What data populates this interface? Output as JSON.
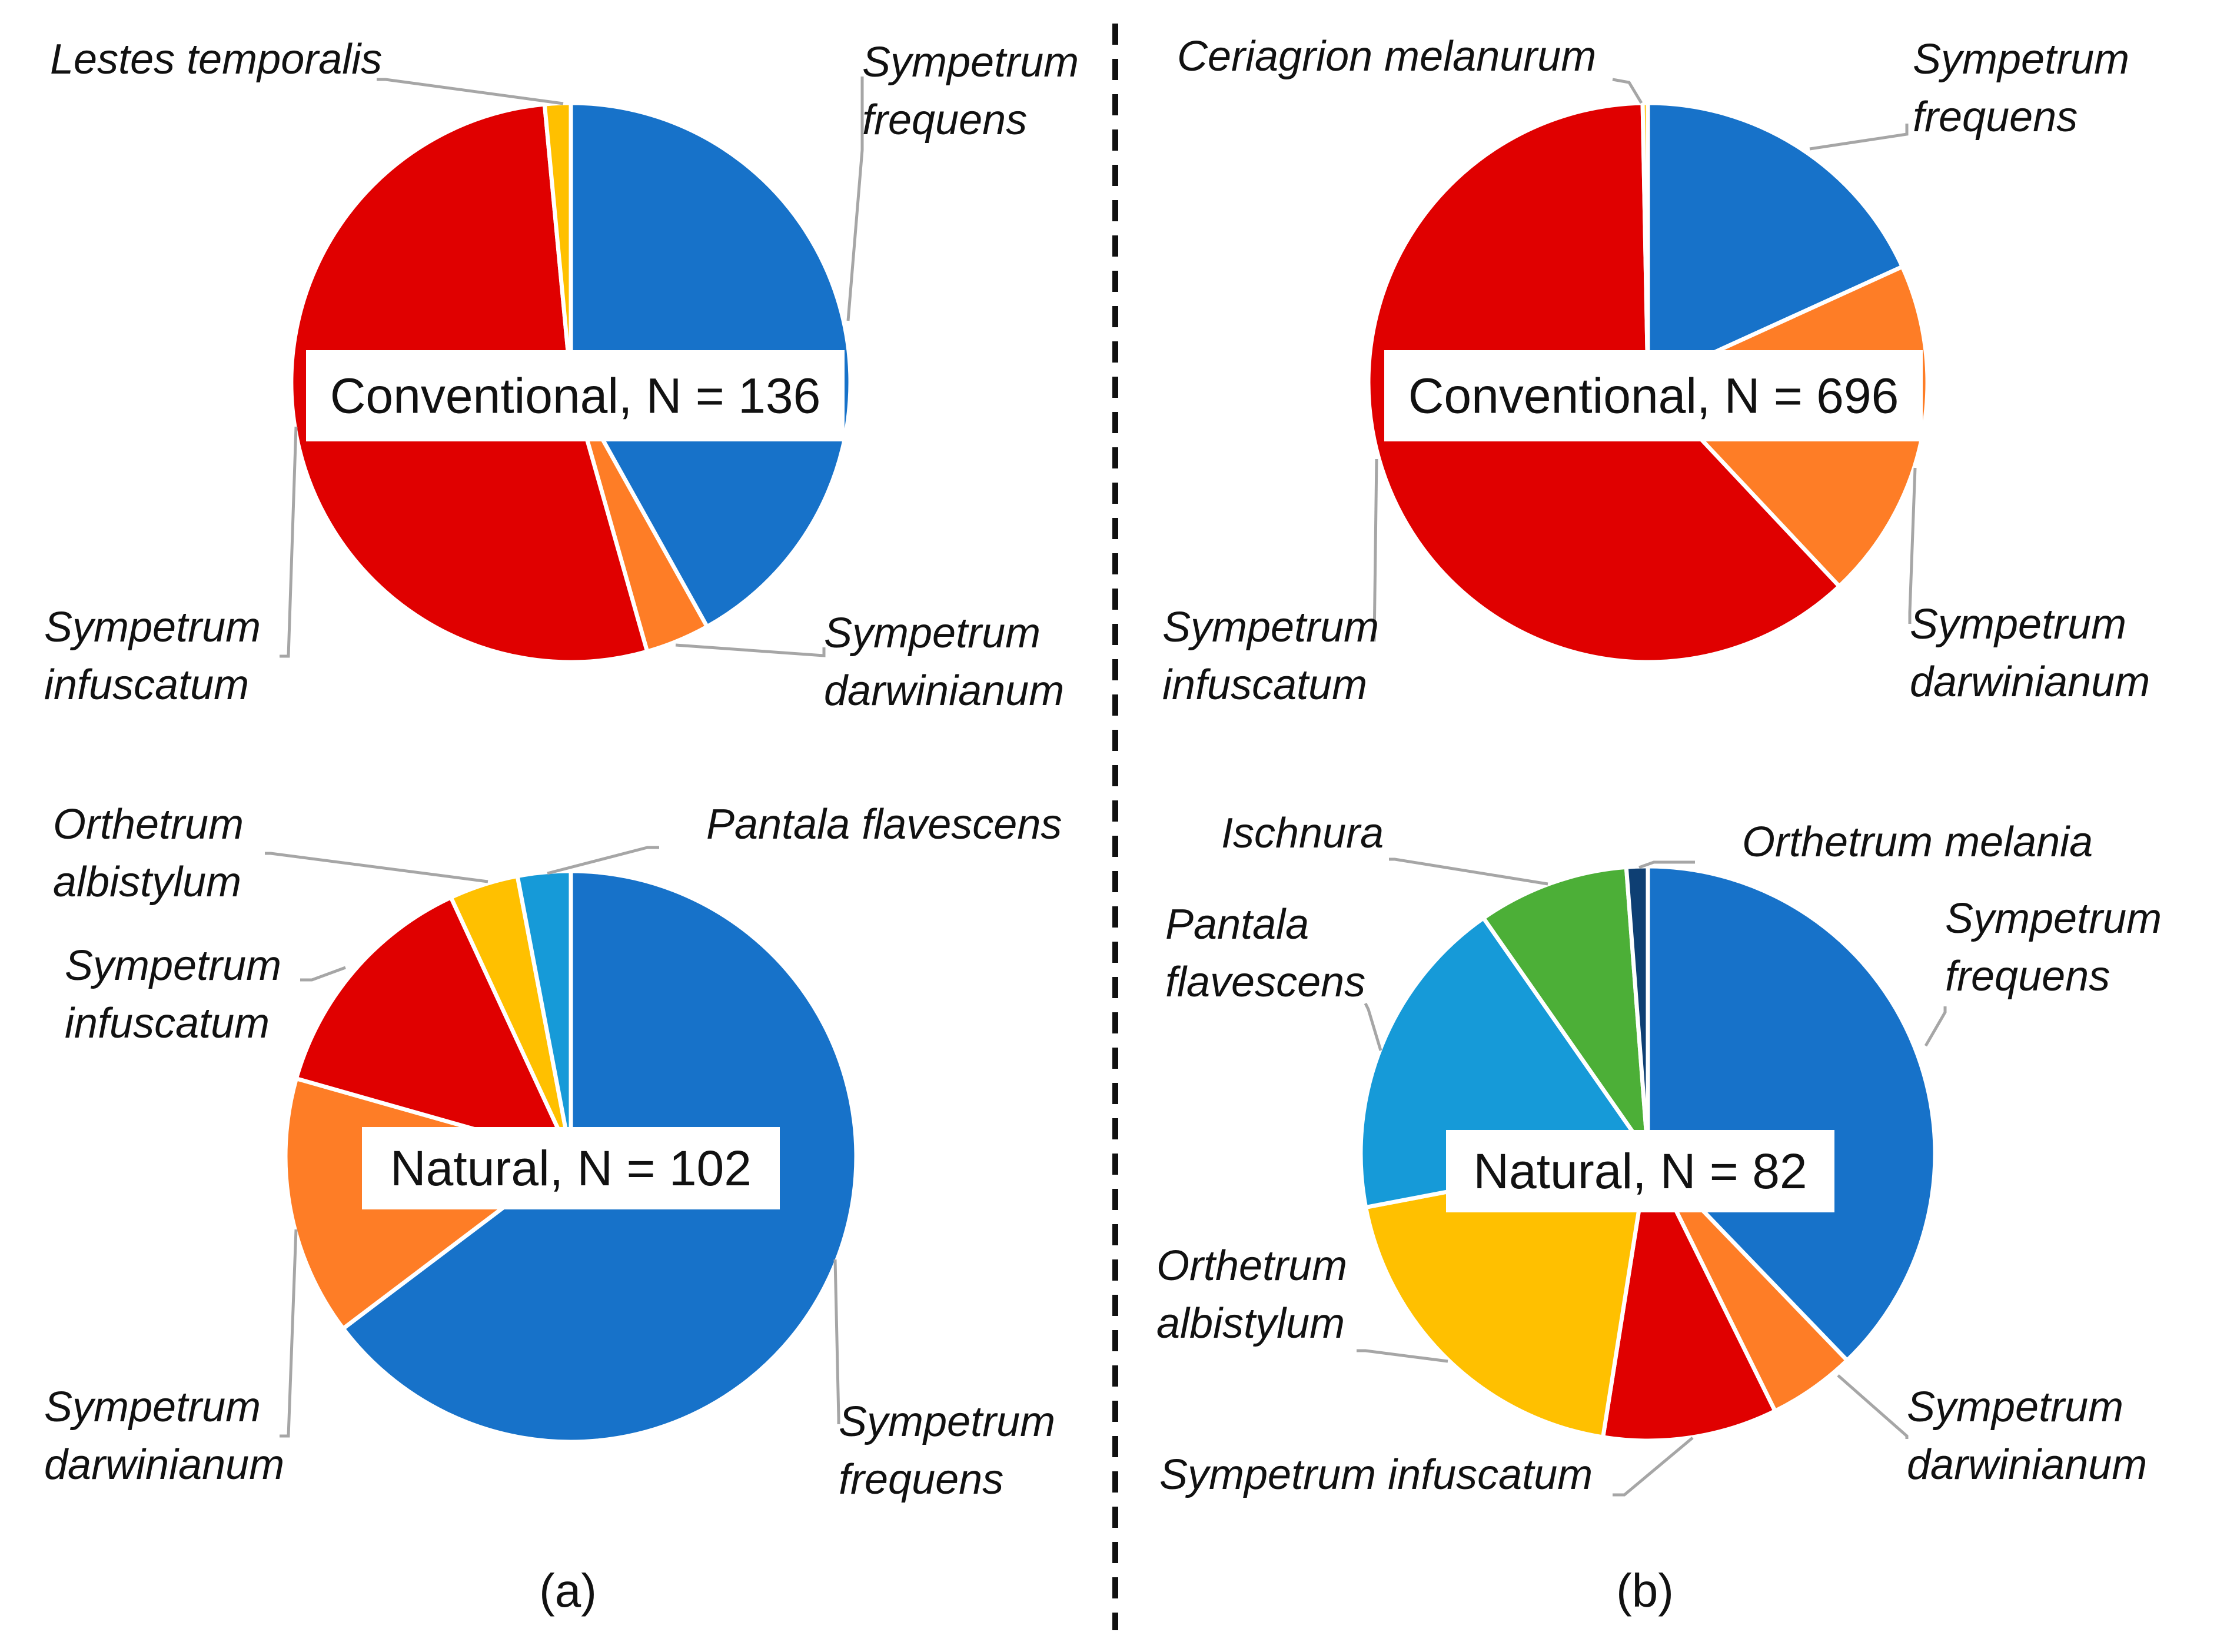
{
  "chart_data": [
    {
      "type": "pie",
      "panel": "a",
      "title": "Conventional, N = 136",
      "slices": [
        {
          "name": "Sympetrum frequens",
          "lines": [
            "Sympetrum",
            "frequens"
          ],
          "value": 41.9,
          "color": "#1772c9"
        },
        {
          "name": "Sympetrum darwinianum",
          "lines": [
            "Sympetrum",
            "darwinianum"
          ],
          "value": 3.7,
          "color": "#fe7d26"
        },
        {
          "name": "Sympetrum infuscatum",
          "lines": [
            "Sympetrum",
            "infuscatum"
          ],
          "value": 52.9,
          "color": "#e00000"
        },
        {
          "name": "Lestes temporalis",
          "lines": [
            "Lestes temporalis"
          ],
          "value": 1.5,
          "color": "#ffc000"
        }
      ]
    },
    {
      "type": "pie",
      "panel": "b",
      "title": "Conventional, N = 696",
      "slices": [
        {
          "name": "Sympetrum frequens",
          "lines": [
            "Sympetrum",
            "frequens"
          ],
          "value": 18.2,
          "color": "#1772c9"
        },
        {
          "name": "Sympetrum darwinianum",
          "lines": [
            "Sympetrum",
            "darwinianum"
          ],
          "value": 19.8,
          "color": "#fe7d26"
        },
        {
          "name": "Sympetrum infuscatum",
          "lines": [
            "Sympetrum",
            "infuscatum"
          ],
          "value": 61.7,
          "color": "#e00000"
        },
        {
          "name": "Ceriagrion melanurum",
          "lines": [
            "Ceriagrion  melanurum"
          ],
          "value": 0.3,
          "color": "#ffc000"
        }
      ]
    },
    {
      "type": "pie",
      "panel": "a",
      "title": "Natural, N = 102",
      "slices": [
        {
          "name": "Sympetrum frequens",
          "lines": [
            "Sympetrum",
            "frequens"
          ],
          "value": 64.7,
          "color": "#1772c9"
        },
        {
          "name": "Sympetrum darwinianum",
          "lines": [
            "Sympetrum",
            "darwinianum"
          ],
          "value": 14.7,
          "color": "#fe7d26"
        },
        {
          "name": "Sympetrum infuscatum",
          "lines": [
            "Sympetrum",
            "infuscatum"
          ],
          "value": 13.7,
          "color": "#e00000"
        },
        {
          "name": "Orthetrum albistylum",
          "lines": [
            "Orthetrum",
            "albistylum"
          ],
          "value": 3.9,
          "color": "#ffc000"
        },
        {
          "name": "Pantala flavescens",
          "lines": [
            "Pantala  flavescens"
          ],
          "value": 3.0,
          "color": "#169ad8"
        }
      ]
    },
    {
      "type": "pie",
      "panel": "b",
      "title": "Natural, N = 82",
      "slices": [
        {
          "name": "Sympetrum frequens",
          "lines": [
            "Sympetrum",
            "frequens"
          ],
          "value": 37.8,
          "color": "#1772c9"
        },
        {
          "name": "Sympetrum darwinianum",
          "lines": [
            "Sympetrum",
            "darwinianum"
          ],
          "value": 4.9,
          "color": "#fe7d26"
        },
        {
          "name": "Sympetrum infuscatum",
          "lines": [
            "Sympetrum infuscatum"
          ],
          "value": 9.8,
          "color": "#e00000"
        },
        {
          "name": "Orthetrum albistylum",
          "lines": [
            "Orthetrum",
            "albistylum"
          ],
          "value": 19.5,
          "color": "#ffc000"
        },
        {
          "name": "Pantala flavescens",
          "lines": [
            "Pantala",
            "flavescens"
          ],
          "value": 18.3,
          "color": "#169ad8"
        },
        {
          "name": "Ischnura",
          "lines": [
            "Ischnura"
          ],
          "value": 8.5,
          "color": "#4caf37"
        },
        {
          "name": "Orthetrum melania",
          "lines": [
            "Orthetrum  melania"
          ],
          "value": 1.2,
          "color": "#0e3f73"
        }
      ]
    }
  ],
  "panel_labels": {
    "a": "(a)",
    "b": "(b)"
  }
}
